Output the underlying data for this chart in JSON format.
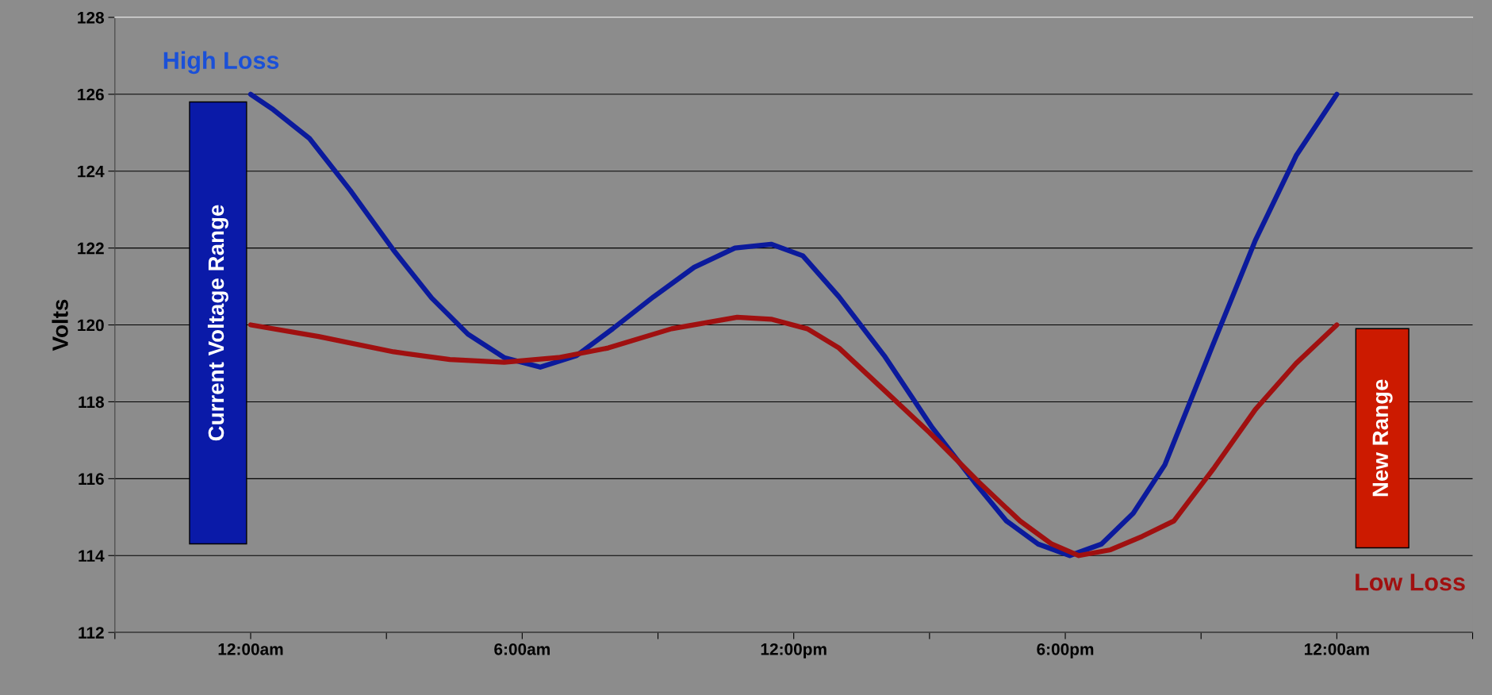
{
  "chart_data": {
    "type": "line",
    "ylabel": "Volts",
    "series": [
      {
        "name": "High Loss",
        "color": "#0b1a9c",
        "x": [
          0,
          0.5,
          1.3,
          2.2,
          3.16,
          4,
          4.8,
          5.6,
          6.4,
          7.2,
          8,
          8.9,
          9.8,
          10.7,
          11.5,
          12.2,
          13,
          14,
          15.06,
          16,
          16.7,
          17.4,
          18.1,
          18.8,
          19.5,
          20.2,
          21.2,
          22.2,
          23.1,
          24
        ],
        "values": [
          126,
          125.6,
          124.85,
          123.5,
          121.94,
          120.7,
          119.76,
          119.15,
          118.9,
          119.2,
          119.9,
          120.73,
          121.5,
          122.0,
          122.1,
          121.8,
          120.73,
          119.2,
          117.33,
          115.9,
          114.9,
          114.3,
          114.0,
          114.3,
          115.1,
          116.36,
          119.3,
          122.2,
          124.4,
          126
        ]
      },
      {
        "name": "Low Loss",
        "color": "#a01010",
        "x": [
          0,
          1.5,
          3.16,
          4.4,
          5.6,
          6.8,
          7.9,
          9.3,
          10.75,
          11.5,
          12.3,
          13,
          14,
          15,
          16.1,
          17,
          17.7,
          18.3,
          19,
          19.7,
          20.4,
          21.3,
          22.2,
          23.1,
          24
        ],
        "values": [
          120,
          119.7,
          119.3,
          119.1,
          119.03,
          119.15,
          119.4,
          119.9,
          120.2,
          120.15,
          119.9,
          119.4,
          118.3,
          117.2,
          115.9,
          114.9,
          114.3,
          114.0,
          114.15,
          114.5,
          114.9,
          116.3,
          117.8,
          119.0,
          120
        ]
      }
    ],
    "annotations": [
      "Current Voltage Range",
      "New Range"
    ],
    "xlim": [
      -3,
      27
    ],
    "xticks": [
      {
        "value": -3,
        "label": null
      },
      {
        "value": 0,
        "label": "12:00am"
      },
      {
        "value": 3,
        "label": null
      },
      {
        "value": 6,
        "label": "6:00am"
      },
      {
        "value": 9,
        "label": null
      },
      {
        "value": 12,
        "label": "12:00pm"
      },
      {
        "value": 15,
        "label": null
      },
      {
        "value": 18,
        "label": "6:00pm"
      },
      {
        "value": 21,
        "label": null
      },
      {
        "value": 24,
        "label": "12:00am"
      },
      {
        "value": 27,
        "label": null
      }
    ],
    "ylim": [
      112,
      128
    ],
    "yticks": [
      112,
      114,
      116,
      118,
      120,
      122,
      124,
      126,
      128
    ],
    "grid": "y",
    "marker": "none",
    "line_style": "solid"
  }
}
